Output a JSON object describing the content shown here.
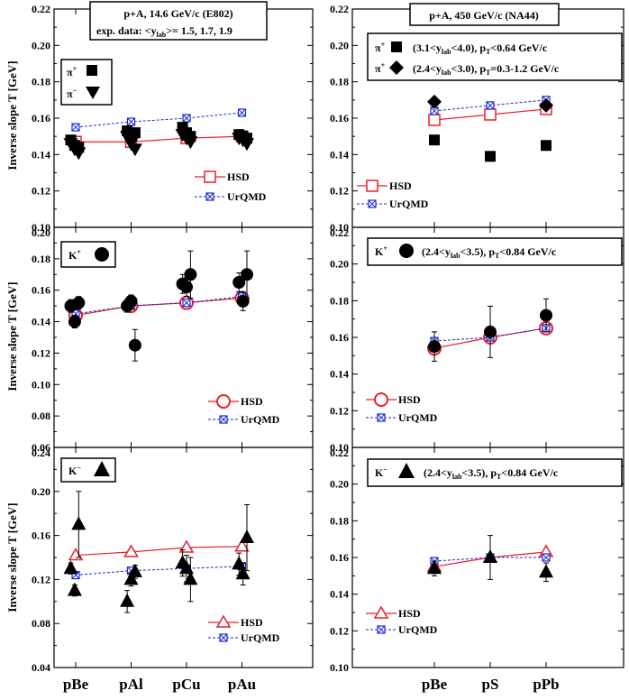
{
  "colors": {
    "hsd": "#e8202a",
    "urqmd": "#1a2ad0",
    "data": "#000000"
  },
  "x_categories": {
    "left": [
      "pBe",
      "pAl",
      "pCu",
      "pAu"
    ],
    "right": [
      "pBe",
      "pS",
      "pPb"
    ]
  },
  "headers": {
    "left_line1": "p+A, 14.6 GeV/c (E802)",
    "left_line2_prefix": "exp. data:  <y",
    "left_line2_sub": "lab",
    "left_line2_suffix": ">= 1.5, 1.7, 1.9",
    "right": "p+A, 450 GeV/c (NA44)"
  },
  "ylabel": "Inverse slope T [GeV]",
  "legends": {
    "hsd": "HSD",
    "urqmd": "UrQMD",
    "pi_plus": "π",
    "pi_plus_sup": "+",
    "pi_minus": "π",
    "pi_minus_sup": "−",
    "kplus": "K",
    "kplus_sup": "+",
    "kminus": "K",
    "kminus_sup": "−",
    "na44_pi1": "(3.1<y",
    "na44_pi1_sub": "lab",
    "na44_pi1_b": "<4.0), p",
    "na44_pi1_sub2": "T",
    "na44_pi1_c": "<0.64 GeV/c",
    "na44_pi2": "(2.4<y",
    "na44_pi2_sub": "lab",
    "na44_pi2_b": "<3.0), p",
    "na44_pi2_sub2": "T",
    "na44_pi2_c": "=0.3-1.2 GeV/c",
    "na44_k": "(2.4<y",
    "na44_k_sub": "lab",
    "na44_k_b": "<3.5), p",
    "na44_k_sub2": "T",
    "na44_k_c": "<0.84 GeV/c"
  },
  "chart_data": [
    {
      "type": "scatter",
      "panel": "top-left",
      "title": "p+A, 14.6 GeV/c (E802) — pions",
      "xlabel": "",
      "ylabel": "Inverse slope T [GeV]",
      "ylim": [
        0.1,
        0.22
      ],
      "yticks": [
        "0.10",
        "0.12",
        "0.14",
        "0.16",
        "0.18",
        "0.20",
        "0.22"
      ],
      "categories": [
        "pBe",
        "pAl",
        "pCu",
        "pAu"
      ],
      "series": [
        {
          "name": "HSD",
          "style": "line-square-open",
          "color": "#e8202a",
          "values": [
            0.147,
            0.147,
            0.149,
            0.15
          ]
        },
        {
          "name": "UrQMD",
          "style": "dash-crossed-square",
          "color": "#1a2ad0",
          "values": [
            0.155,
            0.158,
            0.16,
            0.163
          ]
        },
        {
          "name": "π+ data",
          "style": "square-filled",
          "points": [
            {
              "x": 0,
              "y": 0.148,
              "o": -0.25
            },
            {
              "x": 0,
              "y": 0.145,
              "o": -0.05
            },
            {
              "x": 0,
              "y": 0.144,
              "o": 0.15
            },
            {
              "x": 1,
              "y": 0.153,
              "o": -0.2
            },
            {
              "x": 1,
              "y": 0.151,
              "o": 0.0
            },
            {
              "x": 1,
              "y": 0.152,
              "o": 0.2
            },
            {
              "x": 2,
              "y": 0.155,
              "o": -0.2
            },
            {
              "x": 2,
              "y": 0.152,
              "o": 0.0
            },
            {
              "x": 2,
              "y": 0.15,
              "o": 0.2
            },
            {
              "x": 3,
              "y": 0.151,
              "o": -0.15
            },
            {
              "x": 3,
              "y": 0.15,
              "o": 0.05
            },
            {
              "x": 3,
              "y": 0.149,
              "o": 0.25
            }
          ]
        },
        {
          "name": "π− data",
          "style": "triangle-down-filled",
          "points": [
            {
              "x": 0,
              "y": 0.146,
              "o": -0.25
            },
            {
              "x": 0,
              "y": 0.143,
              "o": -0.05
            },
            {
              "x": 0,
              "y": 0.141,
              "o": 0.15
            },
            {
              "x": 1,
              "y": 0.15,
              "o": -0.2
            },
            {
              "x": 1,
              "y": 0.146,
              "o": 0.0
            },
            {
              "x": 1,
              "y": 0.143,
              "o": 0.2
            },
            {
              "x": 2,
              "y": 0.151,
              "o": -0.2
            },
            {
              "x": 2,
              "y": 0.149,
              "o": 0.0
            },
            {
              "x": 2,
              "y": 0.147,
              "o": 0.2
            },
            {
              "x": 3,
              "y": 0.149,
              "o": -0.15
            },
            {
              "x": 3,
              "y": 0.148,
              "o": 0.05
            },
            {
              "x": 3,
              "y": 0.146,
              "o": 0.25
            }
          ]
        }
      ]
    },
    {
      "type": "scatter",
      "panel": "top-right",
      "title": "p+A, 450 GeV/c (NA44) — pions",
      "ylim": [
        0.1,
        0.22
      ],
      "yticks": [
        "0.10",
        "0.12",
        "0.14",
        "0.16",
        "0.18",
        "0.20",
        "0.22"
      ],
      "categories": [
        "pBe",
        "pS",
        "pPb"
      ],
      "series": [
        {
          "name": "HSD",
          "style": "line-square-open",
          "color": "#e8202a",
          "values": [
            0.159,
            0.162,
            0.165
          ]
        },
        {
          "name": "UrQMD",
          "style": "dash-crossed-square",
          "color": "#1a2ad0",
          "values": [
            0.164,
            0.167,
            0.17
          ]
        },
        {
          "name": "π+ (3.1<ylab<4.0)",
          "style": "square-filled",
          "points": [
            {
              "x": 0,
              "y": 0.148,
              "o": 0
            },
            {
              "x": 1,
              "y": 0.139,
              "o": 0
            },
            {
              "x": 2,
              "y": 0.145,
              "o": 0
            }
          ]
        },
        {
          "name": "π+ (2.4<ylab<3.0)",
          "style": "diamond-filled",
          "points": [
            {
              "x": 0,
              "y": 0.169,
              "o": 0
            },
            {
              "x": 2,
              "y": 0.167,
              "o": 0
            }
          ]
        }
      ]
    },
    {
      "type": "scatter",
      "panel": "middle-left",
      "title": "K+",
      "ylim": [
        0.06,
        0.2
      ],
      "yticks": [
        "0.06",
        "0.08",
        "0.10",
        "0.12",
        "0.14",
        "0.16",
        "0.18",
        "0.20"
      ],
      "categories": [
        "pBe",
        "pAl",
        "pCu",
        "pAu"
      ],
      "series": [
        {
          "name": "HSD",
          "style": "line-circle-open",
          "color": "#e8202a",
          "values": [
            0.144,
            0.15,
            0.152,
            0.155
          ]
        },
        {
          "name": "UrQMD",
          "style": "dash-crossed-square",
          "color": "#1a2ad0",
          "values": [
            0.145,
            0.15,
            0.152,
            0.156
          ]
        },
        {
          "name": "K+ data",
          "style": "circle-filled",
          "points": [
            {
              "x": 0,
              "y": 0.15,
              "o": -0.25,
              "err": 0.004
            },
            {
              "x": 0,
              "y": 0.14,
              "o": -0.05,
              "err": 0.004
            },
            {
              "x": 0,
              "y": 0.152,
              "o": 0.15,
              "err": 0.004
            },
            {
              "x": 1,
              "y": 0.15,
              "o": -0.2,
              "err": 0.004
            },
            {
              "x": 1,
              "y": 0.153,
              "o": 0.0,
              "err": 0.004
            },
            {
              "x": 1,
              "y": 0.125,
              "o": 0.2,
              "err": 0.01
            },
            {
              "x": 2,
              "y": 0.164,
              "o": -0.2,
              "err": 0.006
            },
            {
              "x": 2,
              "y": 0.162,
              "o": 0.0,
              "err": 0.006
            },
            {
              "x": 2,
              "y": 0.17,
              "o": 0.2,
              "err": 0.015
            },
            {
              "x": 3,
              "y": 0.165,
              "o": -0.15,
              "err": 0.006
            },
            {
              "x": 3,
              "y": 0.153,
              "o": 0.05,
              "err": 0.006
            },
            {
              "x": 3,
              "y": 0.17,
              "o": 0.25,
              "err": 0.015
            }
          ]
        }
      ]
    },
    {
      "type": "scatter",
      "panel": "middle-right",
      "title": "K+ (NA44)",
      "ylim": [
        0.1,
        0.22
      ],
      "yticks": [
        "0.10",
        "0.12",
        "0.14",
        "0.16",
        "0.18",
        "0.20",
        "0.22"
      ],
      "categories": [
        "pBe",
        "pS",
        "pPb"
      ],
      "series": [
        {
          "name": "HSD",
          "style": "line-circle-open",
          "color": "#e8202a",
          "values": [
            0.154,
            0.16,
            0.165
          ]
        },
        {
          "name": "UrQMD",
          "style": "dash-crossed-square",
          "color": "#1a2ad0",
          "values": [
            0.158,
            0.16,
            0.165
          ]
        },
        {
          "name": "K+ data",
          "style": "circle-filled",
          "points": [
            {
              "x": 0,
              "y": 0.155,
              "o": 0,
              "err": 0.008
            },
            {
              "x": 1,
              "y": 0.163,
              "o": 0,
              "err": 0.014
            },
            {
              "x": 2,
              "y": 0.172,
              "o": 0,
              "err": 0.009
            }
          ]
        }
      ]
    },
    {
      "type": "scatter",
      "panel": "bottom-left",
      "title": "K−",
      "ylim": [
        0.04,
        0.24
      ],
      "yticks": [
        "0.04",
        "0.08",
        "0.12",
        "0.16",
        "0.20",
        "0.24"
      ],
      "categories": [
        "pBe",
        "pAl",
        "pCu",
        "pAu"
      ],
      "series": [
        {
          "name": "HSD",
          "style": "line-triangle-open",
          "color": "#e8202a",
          "values": [
            0.142,
            0.145,
            0.149,
            0.15
          ]
        },
        {
          "name": "UrQMD",
          "style": "dash-crossed-square",
          "color": "#1a2ad0",
          "values": [
            0.124,
            0.128,
            0.13,
            0.132
          ]
        },
        {
          "name": "K− data",
          "style": "triangle-up-filled",
          "points": [
            {
              "x": 0,
              "y": 0.13,
              "o": -0.25,
              "err": 0.005
            },
            {
              "x": 0,
              "y": 0.11,
              "o": -0.05,
              "err": 0.005
            },
            {
              "x": 0,
              "y": 0.17,
              "o": 0.15,
              "err": 0.03
            },
            {
              "x": 1,
              "y": 0.1,
              "o": -0.2,
              "err": 0.01
            },
            {
              "x": 1,
              "y": 0.12,
              "o": 0.0,
              "err": 0.006
            },
            {
              "x": 1,
              "y": 0.127,
              "o": 0.2,
              "err": 0.006
            },
            {
              "x": 2,
              "y": 0.135,
              "o": -0.2,
              "err": 0.012
            },
            {
              "x": 2,
              "y": 0.13,
              "o": 0.0,
              "err": 0.012
            },
            {
              "x": 2,
              "y": 0.12,
              "o": 0.2,
              "err": 0.02
            },
            {
              "x": 3,
              "y": 0.134,
              "o": -0.15,
              "err": 0.01
            },
            {
              "x": 3,
              "y": 0.125,
              "o": 0.05,
              "err": 0.01
            },
            {
              "x": 3,
              "y": 0.158,
              "o": 0.25,
              "err": 0.03
            }
          ]
        }
      ]
    },
    {
      "type": "scatter",
      "panel": "bottom-right",
      "title": "K− (NA44)",
      "ylim": [
        0.1,
        0.22
      ],
      "yticks": [
        "0.10",
        "0.12",
        "0.14",
        "0.16",
        "0.18",
        "0.20",
        "0.22"
      ],
      "categories": [
        "pBe",
        "pS",
        "pPb"
      ],
      "series": [
        {
          "name": "HSD",
          "style": "line-triangle-open",
          "color": "#e8202a",
          "values": [
            0.155,
            0.16,
            0.163
          ]
        },
        {
          "name": "UrQMD",
          "style": "dash-crossed-square",
          "color": "#1a2ad0",
          "values": [
            0.158,
            0.16,
            0.16
          ]
        },
        {
          "name": "K− data",
          "style": "triangle-up-filled",
          "points": [
            {
              "x": 0,
              "y": 0.154,
              "o": 0,
              "err": 0.004
            },
            {
              "x": 1,
              "y": 0.16,
              "o": 0,
              "err": 0.012
            },
            {
              "x": 2,
              "y": 0.152,
              "o": 0,
              "err": 0.005
            }
          ]
        }
      ]
    }
  ]
}
